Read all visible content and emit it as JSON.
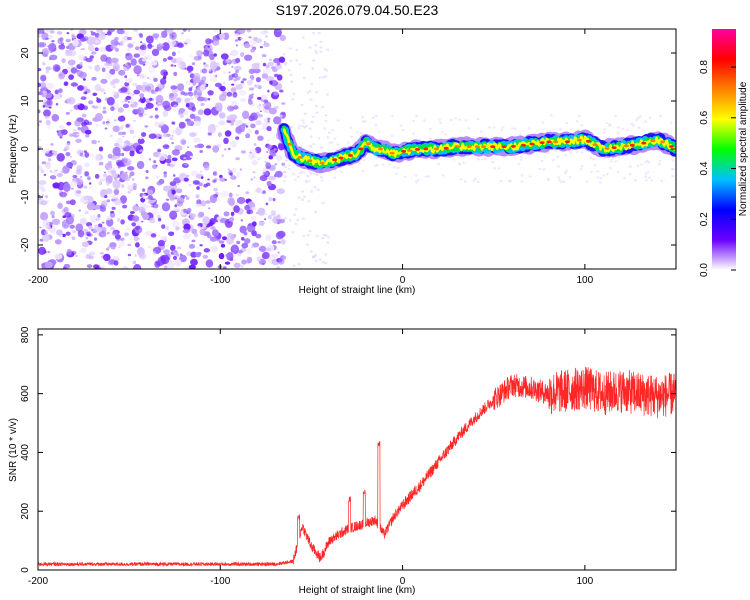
{
  "title": "S197.2026.079.04.50.E23",
  "chart_data": [
    {
      "type": "heatmap",
      "name": "spectrogram",
      "xlabel": "Height of straight line (km)",
      "ylabel": "Frequency (Hz)",
      "xlim": [
        -200,
        150
      ],
      "ylim": [
        -25,
        25
      ],
      "xticks": [
        -200,
        -100,
        0,
        100
      ],
      "yticks": [
        -20,
        -10,
        0,
        10,
        20
      ],
      "noise_region_x": [
        -200,
        -65
      ],
      "signal_start_x": -65,
      "ridge": {
        "x": [
          -65,
          -60,
          -55,
          -50,
          -45,
          -40,
          -35,
          -30,
          -25,
          -20,
          -15,
          -10,
          -5,
          0,
          10,
          20,
          30,
          40,
          50,
          60,
          70,
          80,
          90,
          100,
          110,
          120,
          130,
          140,
          150
        ],
        "y": [
          4,
          -1,
          -2,
          -2.5,
          -3,
          -2.5,
          -2,
          -1.5,
          -1,
          1.5,
          0,
          0,
          -1,
          -0.5,
          0,
          0,
          0.5,
          0.5,
          0.5,
          0.5,
          1,
          1.5,
          1.5,
          2,
          0,
          0.5,
          1,
          2,
          0
        ]
      },
      "colorbar": {
        "label": "Normalized spectral amplitude",
        "range": [
          0,
          0.95
        ],
        "ticks": [
          "0.0",
          "0.2",
          "0.4",
          "0.6",
          "0.8"
        ],
        "tick_values": [
          0,
          0.2,
          0.4,
          0.6,
          0.8
        ],
        "colors": [
          "#ffffff",
          "#6a00ff",
          "#0000ff",
          "#00c0ff",
          "#00ff00",
          "#ffff00",
          "#ff8000",
          "#ff0000",
          "#ff00a0"
        ]
      }
    },
    {
      "type": "line",
      "name": "snr",
      "xlabel": "Height of straight line (km)",
      "ylabel": "SNR (10 * v/v)",
      "xlim": [
        -200,
        150
      ],
      "ylim": [
        0,
        820
      ],
      "xticks": [
        -200,
        -100,
        0,
        100
      ],
      "yticks": [
        0,
        200,
        400,
        600,
        800
      ],
      "color": "#ff0000",
      "series": [
        {
          "name": "SNR",
          "x": [
            -200,
            -150,
            -100,
            -70,
            -60,
            -55,
            -50,
            -45,
            -40,
            -35,
            -30,
            -25,
            -20,
            -15,
            -10,
            -5,
            0,
            10,
            20,
            30,
            40,
            50,
            60,
            70,
            80,
            90,
            100,
            110,
            120,
            130,
            140,
            150
          ],
          "y": [
            20,
            20,
            20,
            20,
            30,
            150,
            80,
            40,
            100,
            120,
            140,
            150,
            160,
            170,
            120,
            180,
            220,
            290,
            370,
            450,
            520,
            580,
            630,
            620,
            600,
            610,
            620,
            600,
            610,
            600,
            590,
            600
          ]
        }
      ],
      "spikes": [
        {
          "x": -57,
          "y": 190
        },
        {
          "x": -29,
          "y": 250
        },
        {
          "x": -13,
          "y": 440
        },
        {
          "x": -21,
          "y": 280
        }
      ]
    }
  ]
}
